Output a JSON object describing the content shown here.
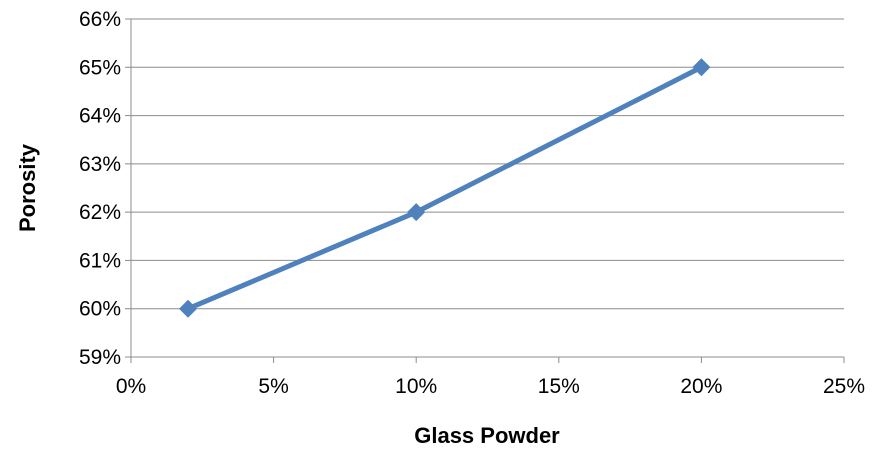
{
  "chart_data": {
    "type": "line",
    "xlabel": "Glass Powder",
    "ylabel": "Porosity",
    "xlim": [
      0,
      25
    ],
    "ylim": [
      59,
      66
    ],
    "x_ticks": [
      0,
      5,
      10,
      15,
      20,
      25
    ],
    "x_tick_labels": [
      "0%",
      "5%",
      "10%",
      "15%",
      "20%",
      "25%"
    ],
    "y_ticks": [
      59,
      60,
      61,
      62,
      63,
      64,
      65,
      66
    ],
    "y_tick_labels": [
      "59%",
      "60%",
      "61%",
      "62%",
      "63%",
      "64%",
      "65%",
      "66%"
    ],
    "grid": "horizontal",
    "legend": "none",
    "series": [
      {
        "x": [
          2,
          10,
          20
        ],
        "y": [
          60,
          62,
          65
        ],
        "color": "#4f81bd",
        "marker": "diamond"
      }
    ]
  }
}
